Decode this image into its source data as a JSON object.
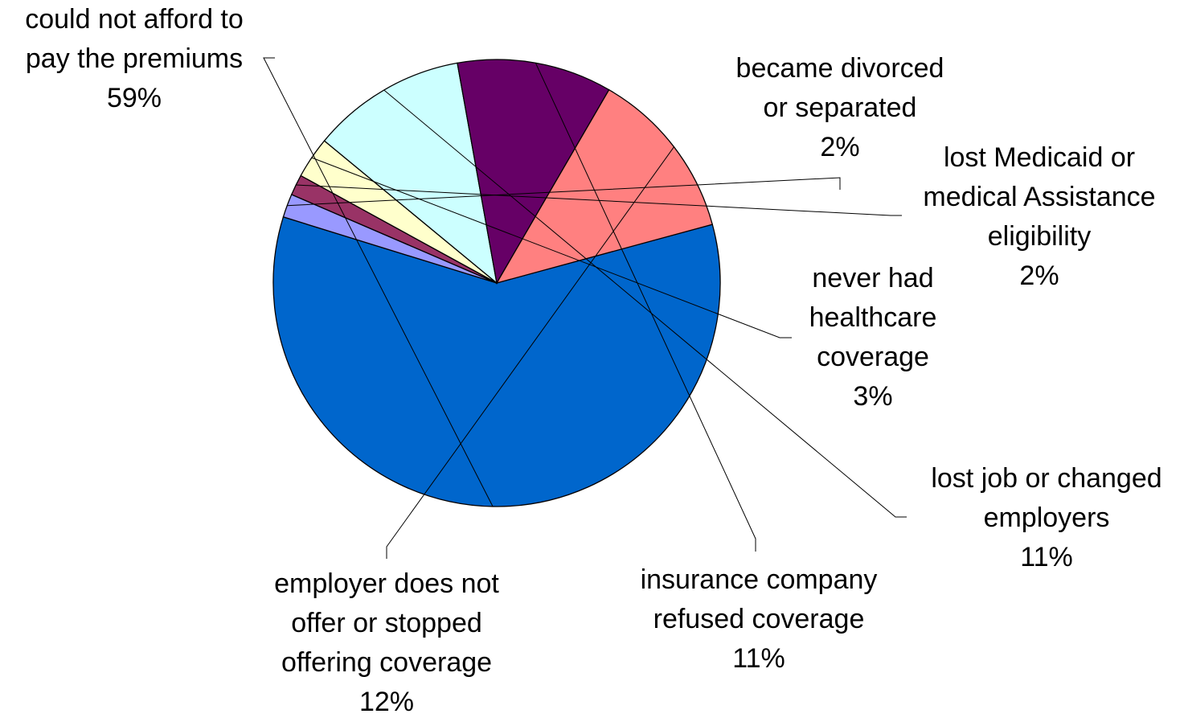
{
  "chart_data": {
    "type": "pie",
    "title": "",
    "slices": [
      {
        "label_lines": [
          "could not afford to",
          "pay the premiums"
        ],
        "pct_label": "59%",
        "value": 59,
        "color": "#0066CC"
      },
      {
        "label_lines": [
          "became divorced",
          "or separated"
        ],
        "pct_label": "2%",
        "value": 1.7,
        "color": "#9999FF"
      },
      {
        "label_lines": [
          "lost Medicaid or",
          "medical Assistance",
          "eligibility"
        ],
        "pct_label": "2%",
        "value": 1.5,
        "color": "#993366"
      },
      {
        "label_lines": [
          "never had",
          "healthcare",
          "coverage"
        ],
        "pct_label": "3%",
        "value": 3,
        "color": "#FFFFCC"
      },
      {
        "label_lines": [
          "lost job or changed",
          "employers"
        ],
        "pct_label": "11%",
        "value": 11.2,
        "color": "#CCFFFF"
      },
      {
        "label_lines": [
          "insurance company",
          "refused coverage"
        ],
        "pct_label": "11%",
        "value": 11.2,
        "color": "#660066"
      },
      {
        "label_lines": [
          "employer does not",
          "offer or stopped",
          "offering coverage"
        ],
        "pct_label": "12%",
        "value": 12.4,
        "color": "#FF8080"
      }
    ],
    "legend": "none"
  }
}
